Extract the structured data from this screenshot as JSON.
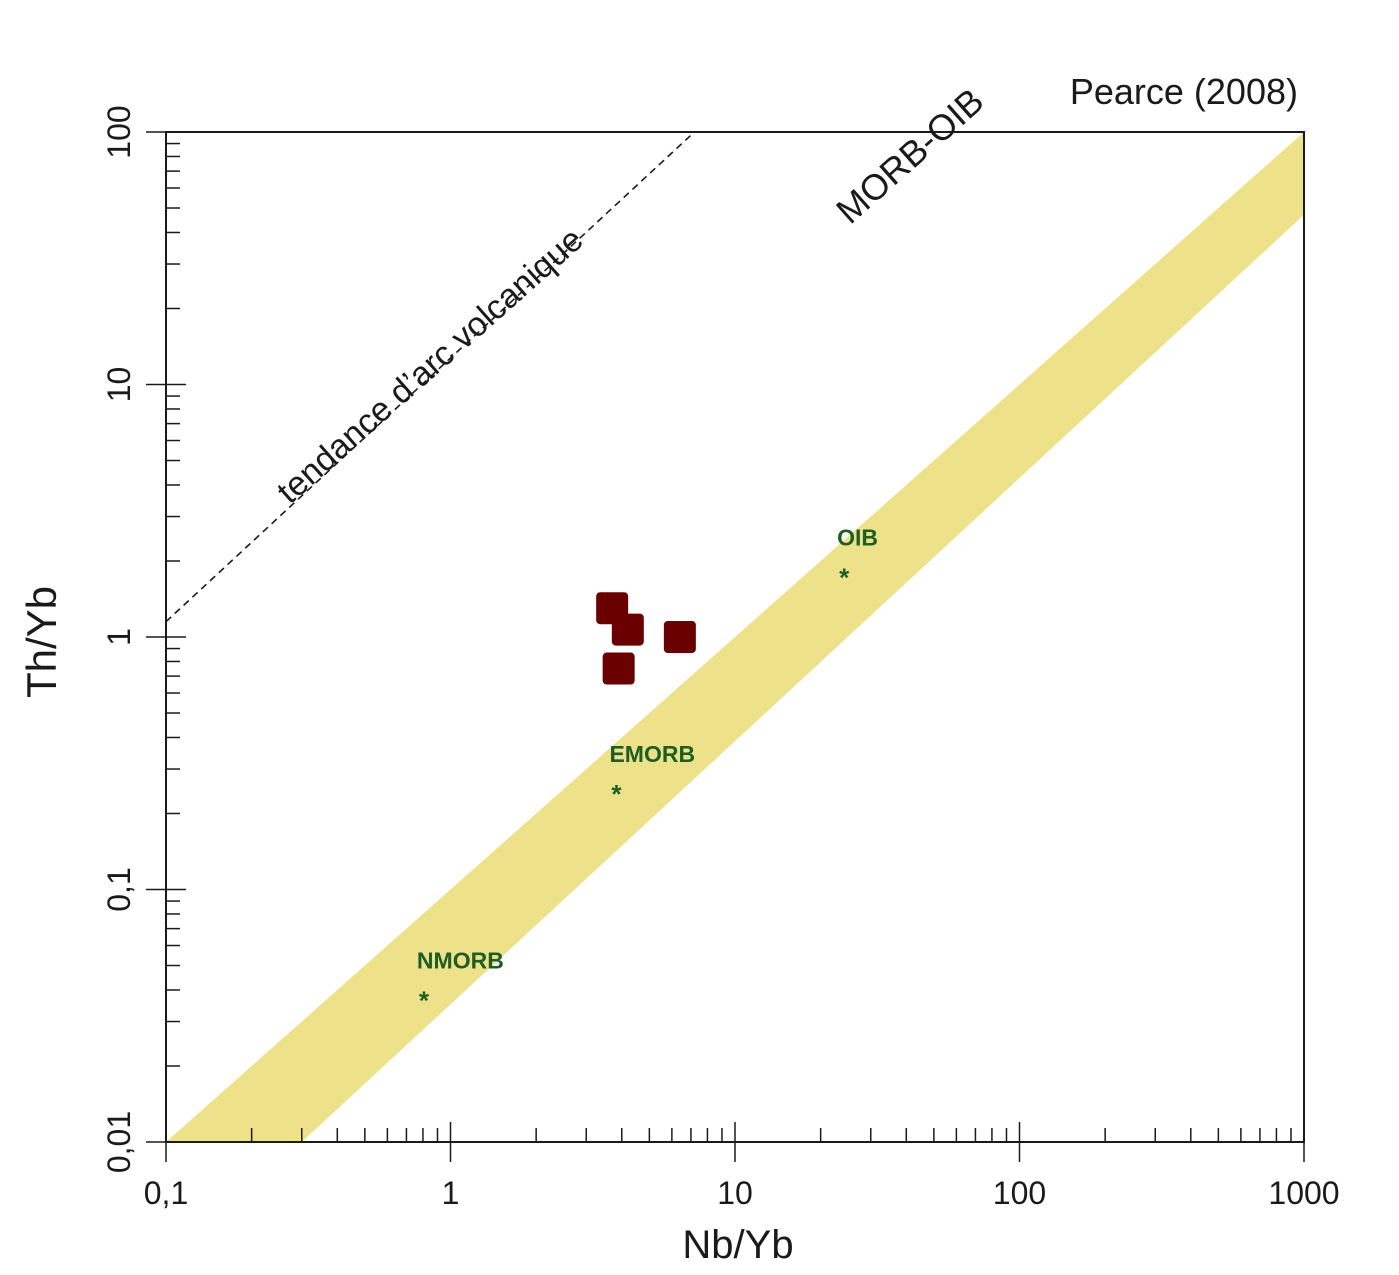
{
  "chart_data": {
    "type": "scatter",
    "title": "",
    "source_label": "Pearce (2008)",
    "xlabel": "Nb/Yb",
    "ylabel": "Th/Yb",
    "x_scale": "log",
    "y_scale": "log",
    "xlim": [
      0.1,
      1000
    ],
    "ylim": [
      0.01,
      100
    ],
    "x_tick_labels": [
      {
        "value": 0.1,
        "label": "0,1"
      },
      {
        "value": 1,
        "label": "1"
      },
      {
        "value": 10,
        "label": "10"
      },
      {
        "value": 100,
        "label": "100"
      },
      {
        "value": 1000,
        "label": "1000"
      }
    ],
    "y_tick_labels": [
      {
        "value": 0.01,
        "label": "0,01"
      },
      {
        "value": 0.1,
        "label": "0,1"
      },
      {
        "value": 1,
        "label": "1"
      },
      {
        "value": 10,
        "label": "10"
      },
      {
        "value": 100,
        "label": "100"
      }
    ],
    "grid": false,
    "legend": "none",
    "morb_oib_array": {
      "label": "MORB-OIB",
      "color": "#ede28a",
      "polygon": [
        [
          0.1,
          0.01
        ],
        [
          1000,
          100
        ],
        [
          1000,
          47
        ],
        [
          0.3,
          0.01
        ]
      ]
    },
    "arc_trend": {
      "label": "tendance d’arc volcanique",
      "style": "dashed",
      "points": [
        [
          0.1,
          1.15
        ],
        [
          7.2,
          100
        ]
      ]
    },
    "reference_points": {
      "color": "#1e5e23",
      "marker": "*",
      "items": [
        {
          "name": "NMORB",
          "x": 0.8,
          "y": 0.038
        },
        {
          "name": "EMORB",
          "x": 3.8,
          "y": 0.25
        },
        {
          "name": "OIB",
          "x": 24,
          "y": 1.8
        }
      ]
    },
    "samples": {
      "color": "#6b0000",
      "marker": "square",
      "points": [
        {
          "x": 3.7,
          "y": 1.3
        },
        {
          "x": 4.2,
          "y": 1.07
        },
        {
          "x": 6.4,
          "y": 1.0
        },
        {
          "x": 3.9,
          "y": 0.75
        }
      ]
    }
  }
}
